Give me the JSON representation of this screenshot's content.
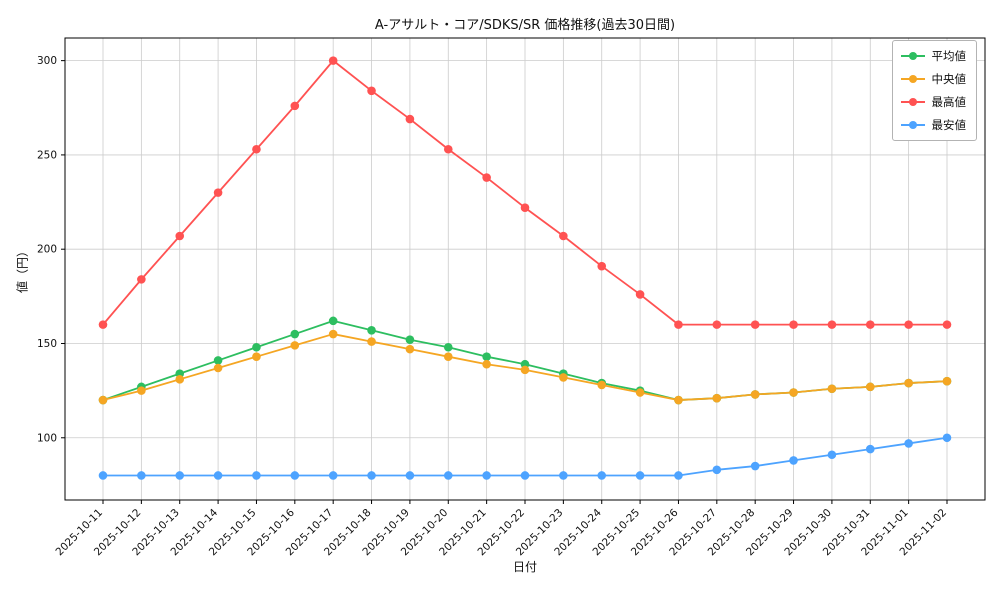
{
  "chart_data": {
    "type": "line",
    "title": "A-アサルト・コア/SDKS/SR 価格推移(過去30日間)",
    "xlabel": "日付",
    "ylabel": "値（円）",
    "grid": true,
    "legend_position": "upper right",
    "ylim": [
      67,
      312
    ],
    "yticks": [
      100,
      150,
      200,
      250,
      300
    ],
    "categories": [
      "2025-10-11",
      "2025-10-12",
      "2025-10-13",
      "2025-10-14",
      "2025-10-15",
      "2025-10-16",
      "2025-10-17",
      "2025-10-18",
      "2025-10-19",
      "2025-10-20",
      "2025-10-21",
      "2025-10-22",
      "2025-10-23",
      "2025-10-24",
      "2025-10-25",
      "2025-10-26",
      "2025-10-27",
      "2025-10-28",
      "2025-10-29",
      "2025-10-30",
      "2025-10-31",
      "2025-11-01",
      "2025-11-02"
    ],
    "series": [
      {
        "key": "avg",
        "name": "平均値",
        "color": "#2dbe60",
        "values": [
          120,
          127,
          134,
          141,
          148,
          155,
          162,
          157,
          152,
          148,
          143,
          139,
          134,
          129,
          125,
          120,
          121,
          123,
          124,
          126,
          127,
          129,
          130
        ]
      },
      {
        "key": "median",
        "name": "中央値",
        "color": "#f5a623",
        "values": [
          120,
          125,
          131,
          137,
          143,
          149,
          155,
          151,
          147,
          143,
          139,
          136,
          132,
          128,
          124,
          120,
          121,
          123,
          124,
          126,
          127,
          129,
          130
        ]
      },
      {
        "key": "max",
        "name": "最高値",
        "color": "#ff5252",
        "values": [
          160,
          184,
          207,
          230,
          253,
          276,
          300,
          284,
          269,
          253,
          238,
          222,
          207,
          191,
          176,
          160,
          160,
          160,
          160,
          160,
          160,
          160,
          160
        ]
      },
      {
        "key": "min",
        "name": "最安値",
        "color": "#4da3ff",
        "values": [
          80,
          80,
          80,
          80,
          80,
          80,
          80,
          80,
          80,
          80,
          80,
          80,
          80,
          80,
          80,
          80,
          83,
          85,
          88,
          91,
          94,
          97,
          100
        ]
      }
    ]
  },
  "colors": {
    "grid": "#cccccc",
    "axis": "#000000",
    "background": "#ffffff"
  }
}
